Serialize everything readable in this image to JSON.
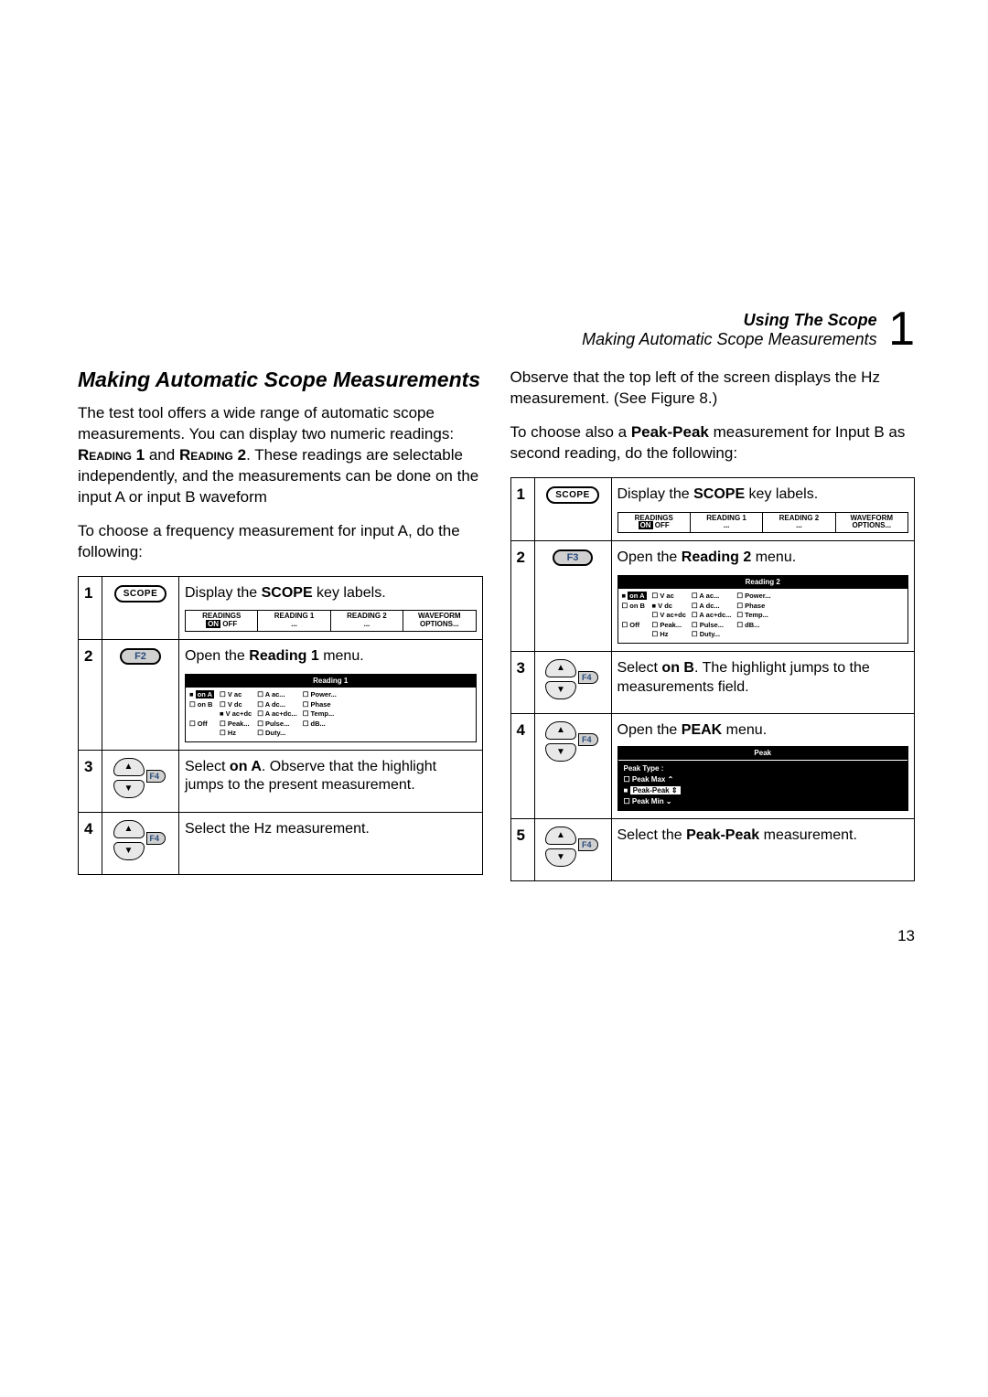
{
  "header": {
    "title1": "Using The Scope",
    "title2": "Making Automatic Scope Measurements",
    "chapter_num": "1"
  },
  "left": {
    "section_title": "Making Automatic Scope Measurements",
    "para1_a": "The test tool offers a wide range of automatic scope measurements. You can display two numeric readings: ",
    "reading1": "Reading 1",
    "and": " and ",
    "reading2": "Reading 2",
    "para1_b": ". These readings are selectable independently, and the measurements can be done on the input A or input B waveform",
    "para2": "To choose a frequency measurement for input A, do the following:",
    "steps": {
      "s1": {
        "num": "1",
        "btn": "SCOPE",
        "desc_a": "Display the ",
        "desc_b": "SCOPE",
        "desc_c": " key labels."
      },
      "s2": {
        "num": "2",
        "btn": "F2",
        "desc_a": "Open the ",
        "desc_b": "Reading 1",
        "desc_c": " menu."
      },
      "s3": {
        "num": "3",
        "btn": "F4",
        "desc_a": "Select ",
        "desc_b": "on A",
        "desc_c": ". Observe that the highlight jumps to the present measurement."
      },
      "s4": {
        "num": "4",
        "btn": "F4",
        "desc": "Select the Hz measurement."
      }
    },
    "menu_strip": {
      "c1a": "READINGS",
      "c1b": "ON  OFF",
      "c2a": "READING 1",
      "c2b": "...",
      "c3a": "READING 2",
      "c3b": "...",
      "c4a": "WAVEFORM",
      "c4b": "OPTIONS..."
    },
    "reading_panel": {
      "title": "Reading 1",
      "col1": {
        "a": "on A",
        "b": "☐ on B",
        "c": "☐ Off"
      },
      "col2": {
        "a": "☐ V ac",
        "b": "☐ V dc",
        "c": "■ V ac+dc",
        "d": "☐ Peak...",
        "e": "☐ Hz"
      },
      "col3": {
        "a": "☐ A ac...",
        "b": "☐ A dc...",
        "c": "☐ A ac+dc...",
        "d": "☐ Pulse...",
        "e": "☐ Duty..."
      },
      "col4": {
        "a": "☐ Power...",
        "b": "☐ Phase",
        "c": "☐ Temp...",
        "d": "☐ dB..."
      }
    }
  },
  "right": {
    "para1": "Observe that the top left of the screen displays the Hz measurement. (See Figure 8.)",
    "para2_a": "To choose also a ",
    "para2_b": "Peak-Peak",
    "para2_c": " measurement for Input B as second reading, do the following:",
    "steps": {
      "s1": {
        "num": "1",
        "btn": "SCOPE",
        "desc_a": "Display the ",
        "desc_b": "SCOPE",
        "desc_c": " key labels."
      },
      "s2": {
        "num": "2",
        "btn": "F3",
        "desc_a": "Open the ",
        "desc_b": "Reading 2",
        "desc_c": " menu."
      },
      "s3": {
        "num": "3",
        "btn": "F4",
        "desc_a": "Select ",
        "desc_b": "on B",
        "desc_c": ". The highlight jumps to the measurements field."
      },
      "s4": {
        "num": "4",
        "btn": "F4",
        "desc_a": "Open the ",
        "desc_b": "PEAK",
        "desc_c": " menu."
      },
      "s5": {
        "num": "5",
        "btn": "F4",
        "desc_a": "Select the ",
        "desc_b": "Peak-Peak",
        "desc_c": " measurement."
      }
    },
    "menu_strip": {
      "c1a": "READINGS",
      "c1b": "ON  OFF",
      "c2a": "READING 1",
      "c2b": "...",
      "c3a": "READING 2",
      "c3b": "...",
      "c4a": "WAVEFORM",
      "c4b": "OPTIONS..."
    },
    "reading_panel": {
      "title": "Reading 2",
      "col1": {
        "a": "on A",
        "b": "☐ on B",
        "c": "☐ Off"
      },
      "col2": {
        "a": "☐ V ac",
        "b": "■ V dc",
        "c": "☐ V ac+dc",
        "d": "☐ Peak...",
        "e": "☐ Hz"
      },
      "col3": {
        "a": "☐ A ac...",
        "b": "☐ A dc...",
        "c": "☐ A ac+dc...",
        "d": "☐ Pulse...",
        "e": "☐ Duty..."
      },
      "col4": {
        "a": "☐ Power...",
        "b": "☐ Phase",
        "c": "☐ Temp...",
        "d": "☐ dB..."
      }
    },
    "peak_panel": {
      "title": "Peak",
      "label": "Peak Type :",
      "opt1": "☐ Peak Max ⌃",
      "opt2": "Peak-Peak ⇕",
      "opt3": "☐ Peak Min ⌄"
    }
  },
  "page_num": "13"
}
